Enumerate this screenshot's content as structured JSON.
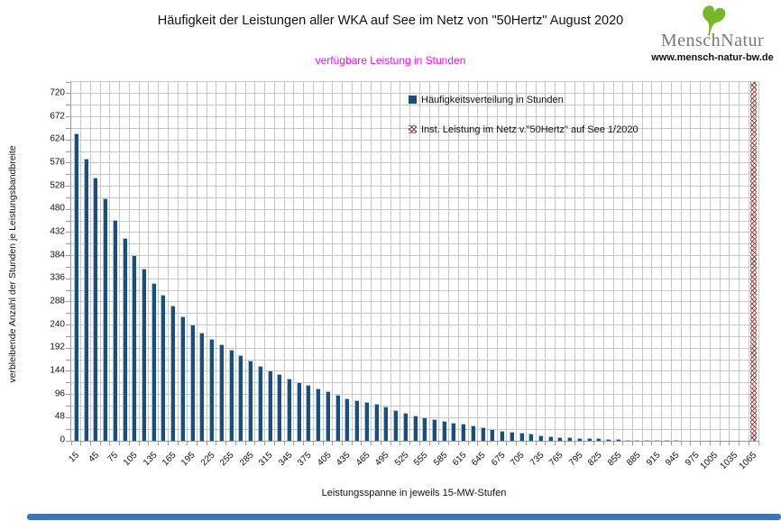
{
  "header": {
    "title": "Häufigkeit der Leistungen aller WKA auf See im Netz von \"50Hertz\" August 2020",
    "subtitle": "verfügbare Leistung in Stunden",
    "subtitle_color": "#ff00ff"
  },
  "logo": {
    "brand_first": "Mensch",
    "brand_second": "Natur",
    "website": "www.mensch-natur-bw.de",
    "leaf_color": "#76b82a",
    "text_color": "#787878"
  },
  "chart_data": {
    "type": "bar",
    "title": "Häufigkeit der Leistungen aller WKA auf See im Netz von \"50Hertz\" August 2020",
    "xlabel": "Leistungsspanne in jeweils 15-MW-Stufen",
    "ylabel": "verbleibende Anzahl der Stunden je Leistungsbandbreite",
    "x": [
      15,
      30,
      45,
      60,
      75,
      90,
      105,
      120,
      135,
      150,
      165,
      180,
      195,
      210,
      225,
      240,
      255,
      270,
      285,
      300,
      315,
      330,
      345,
      360,
      375,
      390,
      405,
      420,
      435,
      450,
      465,
      480,
      495,
      510,
      525,
      540,
      555,
      570,
      585,
      600,
      615,
      630,
      645,
      660,
      675,
      690,
      705,
      720,
      735,
      750,
      765,
      780,
      795,
      810,
      825,
      840,
      855,
      870,
      885,
      900,
      915,
      930,
      945,
      960,
      975,
      990,
      1005,
      1020,
      1035,
      1050,
      1065
    ],
    "series": [
      {
        "name": "Häufigkeitsverteilung in Stunden",
        "type": "bar",
        "color": "#1a4e80",
        "values": [
          638,
          585,
          545,
          502,
          458,
          420,
          385,
          357,
          328,
          302,
          281,
          258,
          242,
          225,
          211,
          200,
          188,
          178,
          167,
          156,
          146,
          138,
          129,
          122,
          116,
          109,
          103,
          95,
          88,
          85,
          81,
          76,
          71,
          63,
          58,
          52,
          48,
          44,
          41,
          38,
          35,
          32,
          29,
          25,
          21,
          18,
          16,
          15,
          11,
          9,
          7,
          7,
          5,
          5,
          5,
          4,
          3,
          2,
          2,
          1,
          1,
          1,
          1,
          0,
          0,
          0,
          0,
          0,
          0,
          0,
          0
        ]
      },
      {
        "name": "Inst. Leistung im Netz v.\"50Hertz\" auf See 1/2020",
        "type": "full-height-marker",
        "pattern": "crosshatch",
        "color": "#9e3a38",
        "x": 1065,
        "full_height": true
      }
    ],
    "ylim": [
      0,
      744
    ],
    "ytick_step": 48,
    "ytick_label_max": 720,
    "xtick_every": 2,
    "grid": true,
    "grid_color": "#c6c6c6",
    "legend_position": "top-right-inside"
  },
  "scrollbar_color": "#4272b4"
}
